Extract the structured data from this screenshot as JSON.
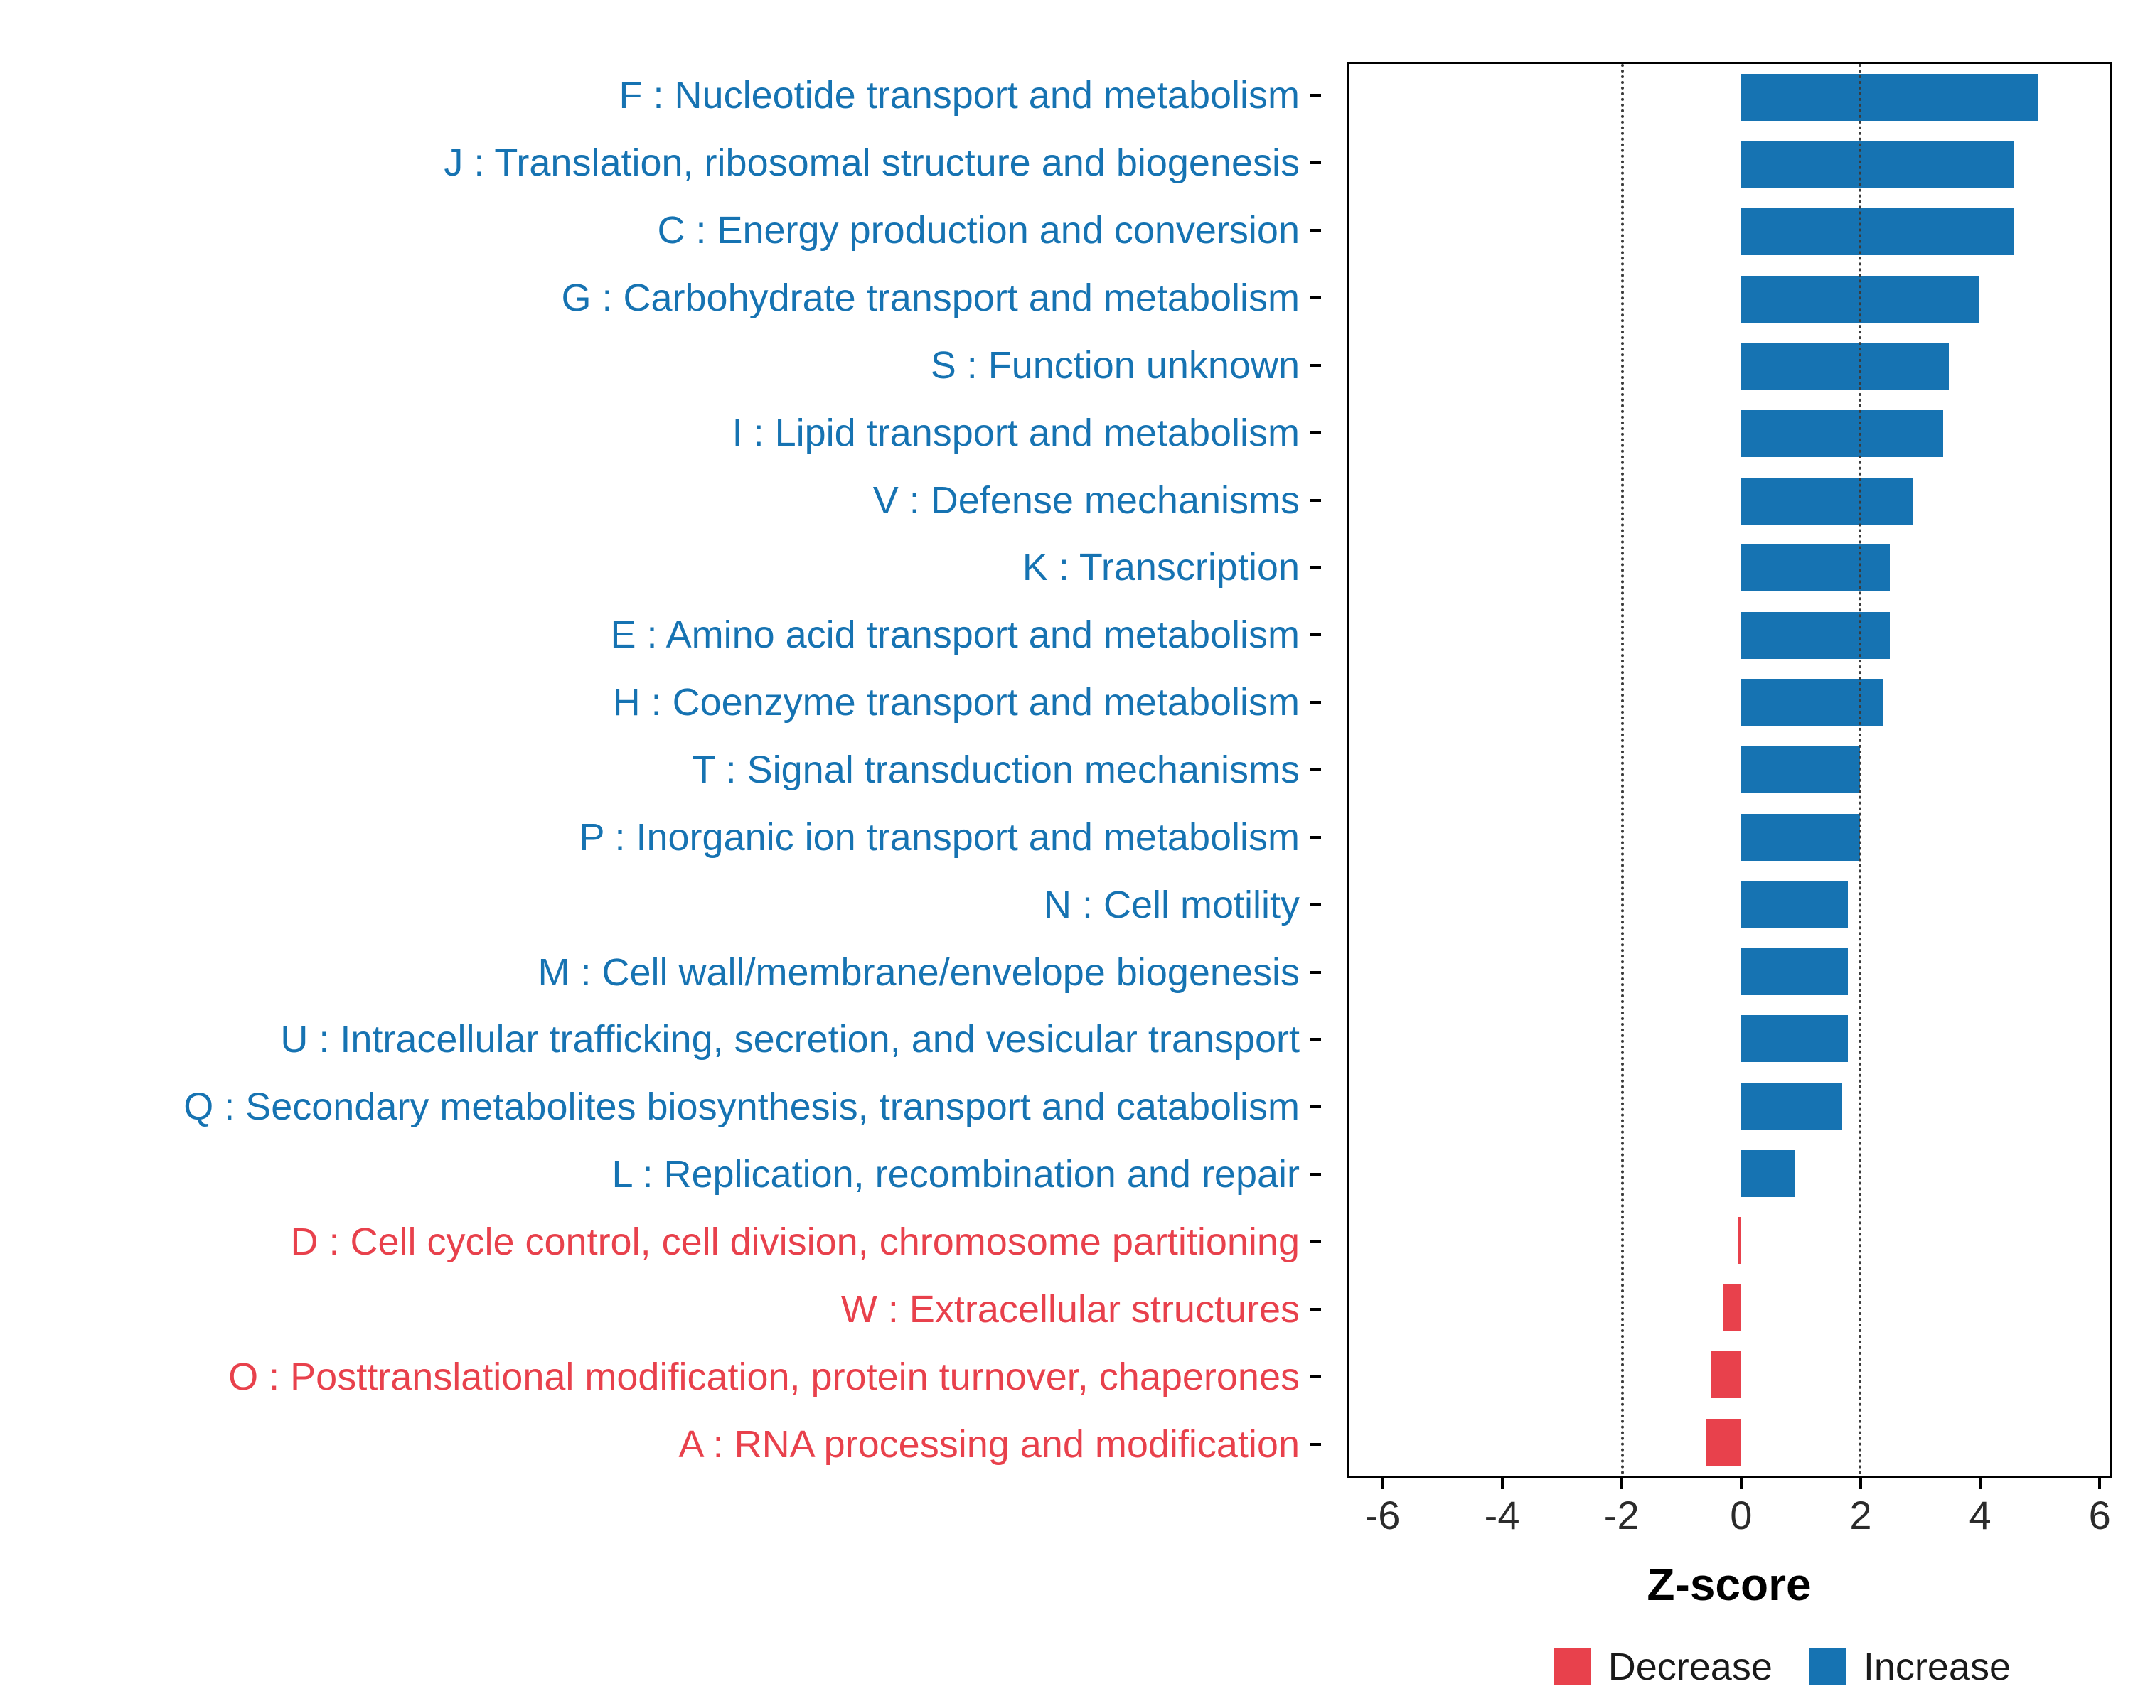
{
  "chart_data": {
    "type": "bar",
    "orientation": "horizontal",
    "title": "",
    "xlabel": "Z-score",
    "ylabel": "",
    "x_ticks": [
      -6,
      -4,
      -2,
      0,
      2,
      4,
      6
    ],
    "xlim": [
      -6.6,
      6.2
    ],
    "grid": false,
    "reference_lines": {
      "values": [
        -2,
        2
      ],
      "style": "dotted"
    },
    "colors": {
      "increase": "#1673B2",
      "decrease": "#E8414C"
    },
    "legend": {
      "position": "bottom-right",
      "items": [
        {
          "label": "Decrease",
          "color": "#E8414C"
        },
        {
          "label": "Increase",
          "color": "#1673B2"
        }
      ]
    },
    "categories": [
      {
        "label": "F : Nucleotide transport and metabolism",
        "value": 5.0,
        "group": "increase"
      },
      {
        "label": "J : Translation, ribosomal structure and biogenesis",
        "value": 4.6,
        "group": "increase"
      },
      {
        "label": "C : Energy production and conversion",
        "value": 4.6,
        "group": "increase"
      },
      {
        "label": "G : Carbohydrate transport and metabolism",
        "value": 4.0,
        "group": "increase"
      },
      {
        "label": "S : Function unknown",
        "value": 3.5,
        "group": "increase"
      },
      {
        "label": "I : Lipid transport and metabolism",
        "value": 3.4,
        "group": "increase"
      },
      {
        "label": "V : Defense mechanisms",
        "value": 2.9,
        "group": "increase"
      },
      {
        "label": "K : Transcription",
        "value": 2.5,
        "group": "increase"
      },
      {
        "label": "E : Amino acid transport and metabolism",
        "value": 2.5,
        "group": "increase"
      },
      {
        "label": "H : Coenzyme transport and metabolism",
        "value": 2.4,
        "group": "increase"
      },
      {
        "label": "T : Signal transduction mechanisms",
        "value": 2.0,
        "group": "increase"
      },
      {
        "label": "P : Inorganic ion transport and metabolism",
        "value": 2.0,
        "group": "increase"
      },
      {
        "label": "N : Cell motility",
        "value": 1.8,
        "group": "increase"
      },
      {
        "label": "M : Cell wall/membrane/envelope biogenesis",
        "value": 1.8,
        "group": "increase"
      },
      {
        "label": "U : Intracellular trafficking, secretion, and vesicular transport",
        "value": 1.8,
        "group": "increase"
      },
      {
        "label": "Q : Secondary metabolites biosynthesis, transport and catabolism",
        "value": 1.7,
        "group": "increase"
      },
      {
        "label": "L : Replication, recombination and repair",
        "value": 0.9,
        "group": "increase"
      },
      {
        "label": "D : Cell cycle control, cell division, chromosome partitioning",
        "value": -0.05,
        "group": "decrease"
      },
      {
        "label": "W : Extracellular structures",
        "value": -0.3,
        "group": "decrease"
      },
      {
        "label": "O : Posttranslational modification, protein turnover, chaperones",
        "value": -0.5,
        "group": "decrease"
      },
      {
        "label": "A : RNA processing and modification",
        "value": -0.6,
        "group": "decrease"
      }
    ]
  }
}
